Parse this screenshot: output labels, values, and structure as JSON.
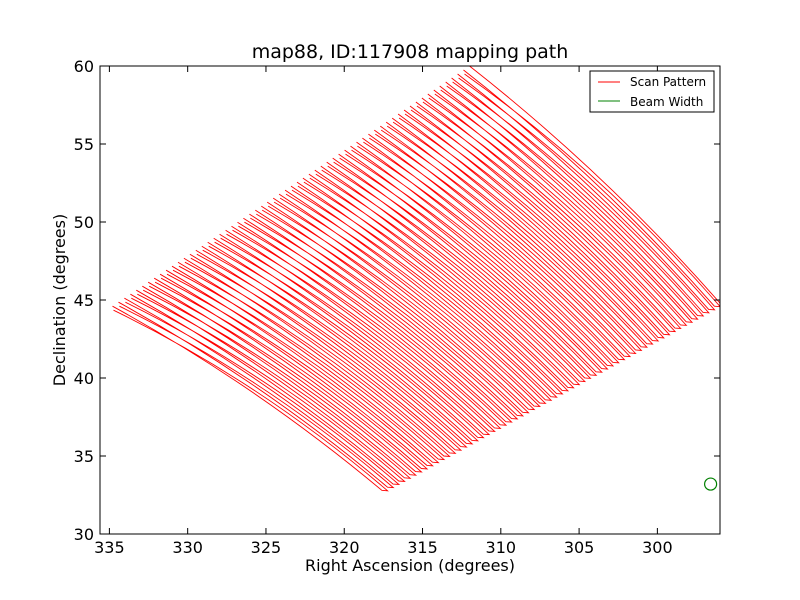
{
  "chart_data": {
    "type": "line",
    "title": "map88, ID:117908 mapping path",
    "xlabel": "Right Ascension (degrees)",
    "ylabel": "Declination (degrees)",
    "xlim": [
      335.6,
      296.0
    ],
    "ylim": [
      30,
      60
    ],
    "x_inverted": true,
    "xticks": [
      335,
      330,
      325,
      320,
      315,
      310,
      305,
      300
    ],
    "xtick_labels": [
      "335",
      "330",
      "325",
      "320",
      "315",
      "310",
      "305",
      "300"
    ],
    "yticks": [
      30,
      35,
      40,
      45,
      50,
      55,
      60
    ],
    "ytick_labels": [
      "30",
      "35",
      "40",
      "45",
      "50",
      "55",
      "60"
    ],
    "legend_position": "top-right",
    "grid": false,
    "series": [
      {
        "name": "Scan Pattern",
        "color": "#ff0000",
        "kind": "raster scan",
        "corners": {
          "left": [
            334.8,
            44.6
          ],
          "top": [
            312.0,
            60.0
          ],
          "right": [
            296.0,
            44.8
          ],
          "bottom": [
            317.6,
            32.8
          ]
        },
        "scan_lines": 60
      },
      {
        "name": "Beam Width",
        "color": "#008000",
        "kind": "circle marker",
        "center": [
          296.6,
          33.2
        ]
      }
    ]
  }
}
